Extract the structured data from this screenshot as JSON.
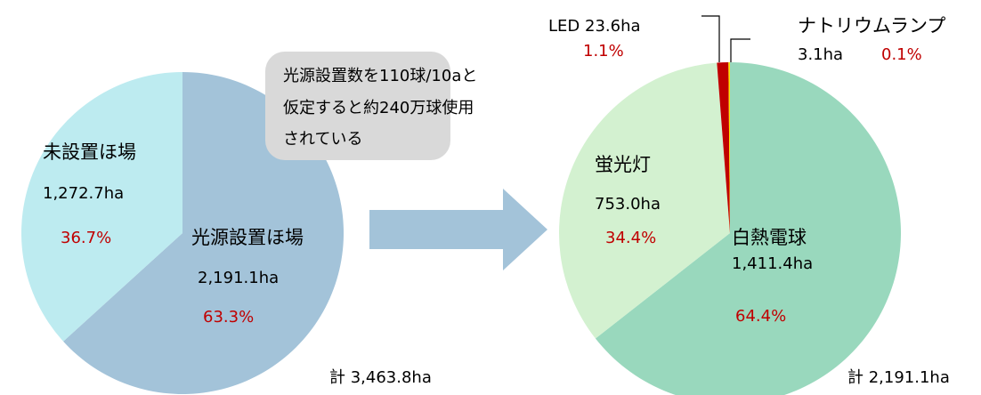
{
  "chart_data": [
    {
      "type": "pie",
      "categories": [
        "光源設置ほ場",
        "未設置ほ場"
      ],
      "values": [
        2191.1,
        1272.7
      ],
      "value_labels": [
        "2,191.1ha",
        "1,272.7ha"
      ],
      "percent_labels": [
        "63.3%",
        "36.7%"
      ],
      "colors": [
        "#a3c3d9",
        "#bdebf0"
      ],
      "total_label": "計 3,463.8ha"
    },
    {
      "type": "pie",
      "categories": [
        "白熱電球",
        "蛍光灯",
        "LED",
        "ナトリウムランプ"
      ],
      "values": [
        1411.4,
        753.0,
        23.6,
        3.1
      ],
      "value_labels": [
        "1,411.4ha",
        "753.0ha",
        "23.6ha",
        "3.1ha"
      ],
      "percent_labels": [
        "64.4%",
        "34.4%",
        "1.1%",
        "0.1%"
      ],
      "colors": [
        "#99d8bd",
        "#d3f1d0",
        "#c00000",
        "#ffe000"
      ],
      "total_label": "計 2,191.1ha"
    }
  ],
  "callout": [
    "光源設置数を110球/10aと",
    "仮定すると約240万球使用",
    "されている"
  ]
}
